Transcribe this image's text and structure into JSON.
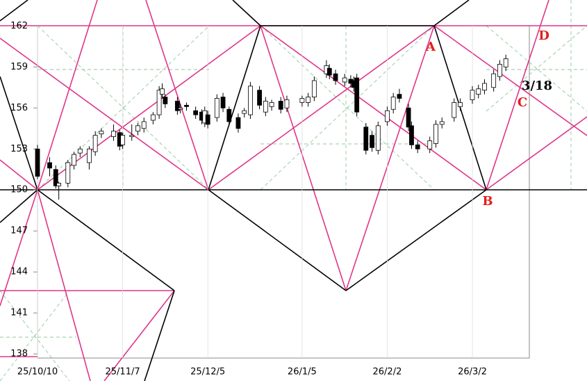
{
  "chart_data": {
    "type": "candlestick",
    "x": [
      "25/10/10",
      "25/10/14",
      "25/10/16",
      "25/10/17",
      "25/10/20",
      "25/10/22",
      "25/10/24",
      "25/10/27",
      "25/10/29",
      "25/10/31",
      "25/11/4",
      "25/11/6",
      "25/11/7",
      "25/11/10",
      "25/11/12",
      "25/11/14",
      "25/11/17",
      "25/11/19",
      "25/11/20",
      "25/11/21",
      "25/11/25",
      "25/11/26",
      "25/11/28",
      "25/12/1",
      "25/12/3",
      "25/12/4",
      "25/12/5",
      "25/12/8",
      "25/12/10",
      "25/12/12",
      "25/12/15",
      "25/12/17",
      "25/12/19",
      "25/12/22",
      "25/12/24",
      "25/12/26",
      "25/12/29",
      "25/12/31",
      "26/1/5",
      "26/1/7",
      "26/1/9",
      "26/1/13",
      "26/1/14",
      "26/1/16",
      "26/1/19",
      "26/1/21",
      "26/1/22",
      "26/1/23",
      "26/1/26",
      "26/1/28",
      "26/1/30",
      "26/2/2",
      "26/2/4",
      "26/2/6",
      "26/2/9",
      "26/2/10",
      "26/2/12",
      "26/2/16",
      "26/2/18",
      "26/2/20",
      "26/2/24",
      "26/2/26",
      "26/3/2",
      "26/3/4",
      "26/3/6",
      "26/3/9",
      "26/3/11",
      "26/3/13"
    ],
    "open": [
      153.0,
      152.0,
      151.5,
      150.3,
      150.5,
      151.8,
      152.7,
      152.0,
      152.8,
      154.1,
      153.9,
      154.2,
      153.3,
      153.9,
      154.3,
      154.5,
      155.1,
      155.5,
      157.0,
      156.8,
      156.5,
      155.9,
      156.2,
      155.8,
      155.7,
      154.9,
      155.5,
      155.3,
      156.8,
      155.9,
      155.3,
      155.6,
      155.5,
      157.3,
      155.7,
      156.1,
      156.5,
      156.0,
      156.4,
      156.4,
      156.8,
      158.5,
      158.9,
      158.5,
      157.9,
      158.1,
      158.0,
      158.2,
      154.6,
      154.0,
      152.9,
      155.0,
      155.9,
      157.0,
      156.0,
      154.7,
      153.3,
      153.0,
      153.4,
      154.8,
      155.3,
      156.1,
      156.6,
      157.0,
      157.3,
      157.5,
      158.3,
      159.0
    ],
    "high": [
      153.3,
      152.4,
      151.8,
      150.6,
      152.2,
      152.8,
      153.2,
      153.2,
      154.3,
      154.5,
      154.8,
      154.4,
      154.2,
      154.8,
      154.9,
      155.3,
      155.7,
      157.6,
      157.8,
      157.0,
      156.8,
      156.3,
      156.4,
      156.1,
      155.9,
      156.1,
      155.8,
      157.0,
      157.1,
      156.1,
      155.6,
      156.0,
      157.9,
      157.6,
      156.8,
      156.6,
      156.8,
      156.9,
      156.9,
      157.1,
      158.3,
      159.5,
      159.2,
      158.8,
      158.5,
      158.4,
      158.3,
      158.5,
      154.9,
      154.3,
      155.0,
      156.1,
      157.1,
      157.4,
      156.3,
      155.0,
      153.6,
      153.9,
      155.1,
      155.3,
      156.7,
      156.7,
      157.6,
      157.7,
      158.1,
      158.8,
      159.5,
      159.9
    ],
    "low": [
      150.8,
      151.0,
      150.1,
      149.3,
      150.2,
      151.5,
      152.4,
      151.5,
      152.5,
      153.8,
      153.6,
      152.9,
      153.0,
      153.6,
      154.0,
      154.2,
      154.8,
      155.2,
      156.7,
      156.0,
      155.5,
      155.6,
      155.8,
      155.2,
      154.8,
      154.6,
      154.5,
      155.0,
      155.7,
      154.7,
      154.2,
      155.3,
      155.2,
      155.9,
      155.4,
      155.8,
      155.6,
      155.7,
      156.1,
      156.1,
      156.5,
      158.2,
      158.1,
      157.7,
      157.6,
      157.5,
      157.2,
      155.4,
      152.6,
      152.8,
      152.6,
      154.7,
      155.6,
      156.4,
      154.3,
      153.0,
      152.7,
      152.7,
      153.1,
      154.5,
      155.0,
      155.8,
      156.3,
      156.7,
      157.0,
      157.2,
      158.0,
      158.7
    ],
    "close": [
      151.0,
      151.6,
      150.3,
      150.5,
      152.0,
      152.6,
      153.0,
      153.0,
      154.0,
      154.3,
      154.3,
      153.2,
      154.0,
      154.0,
      154.7,
      155.0,
      155.5,
      157.3,
      157.4,
      156.3,
      155.8,
      156.0,
      156.1,
      155.5,
      155.1,
      155.8,
      154.8,
      156.7,
      156.0,
      155.0,
      154.5,
      155.8,
      157.6,
      156.2,
      156.5,
      156.4,
      155.9,
      156.6,
      156.7,
      156.8,
      158.0,
      159.1,
      158.4,
      158.0,
      158.2,
      157.8,
      157.5,
      155.7,
      152.9,
      153.1,
      154.7,
      155.8,
      156.8,
      156.7,
      154.6,
      153.3,
      153.0,
      153.6,
      154.8,
      155.0,
      156.4,
      156.4,
      157.3,
      157.4,
      157.8,
      158.5,
      159.2,
      159.6
    ],
    "up_color": "#ffffff",
    "down_color": "#000000",
    "edge_color": "#000000",
    "xticks": [
      "25/10/10",
      "25/11/7",
      "25/12/5",
      "26/1/5",
      "26/2/2",
      "26/3/2"
    ],
    "ylim": [
      137.7,
      163.9
    ],
    "yticks": [
      138,
      141,
      144,
      147,
      150,
      153,
      156,
      159,
      162
    ],
    "grid": true,
    "annotations": [
      {
        "text": "A",
        "color": "#e0201c"
      },
      {
        "text": "B",
        "color": "#e0201c"
      },
      {
        "text": "C",
        "color": "#e0201c"
      },
      {
        "text": "D",
        "color": "#e0201c"
      },
      {
        "text": "3/18",
        "color": "#000000"
      }
    ]
  }
}
